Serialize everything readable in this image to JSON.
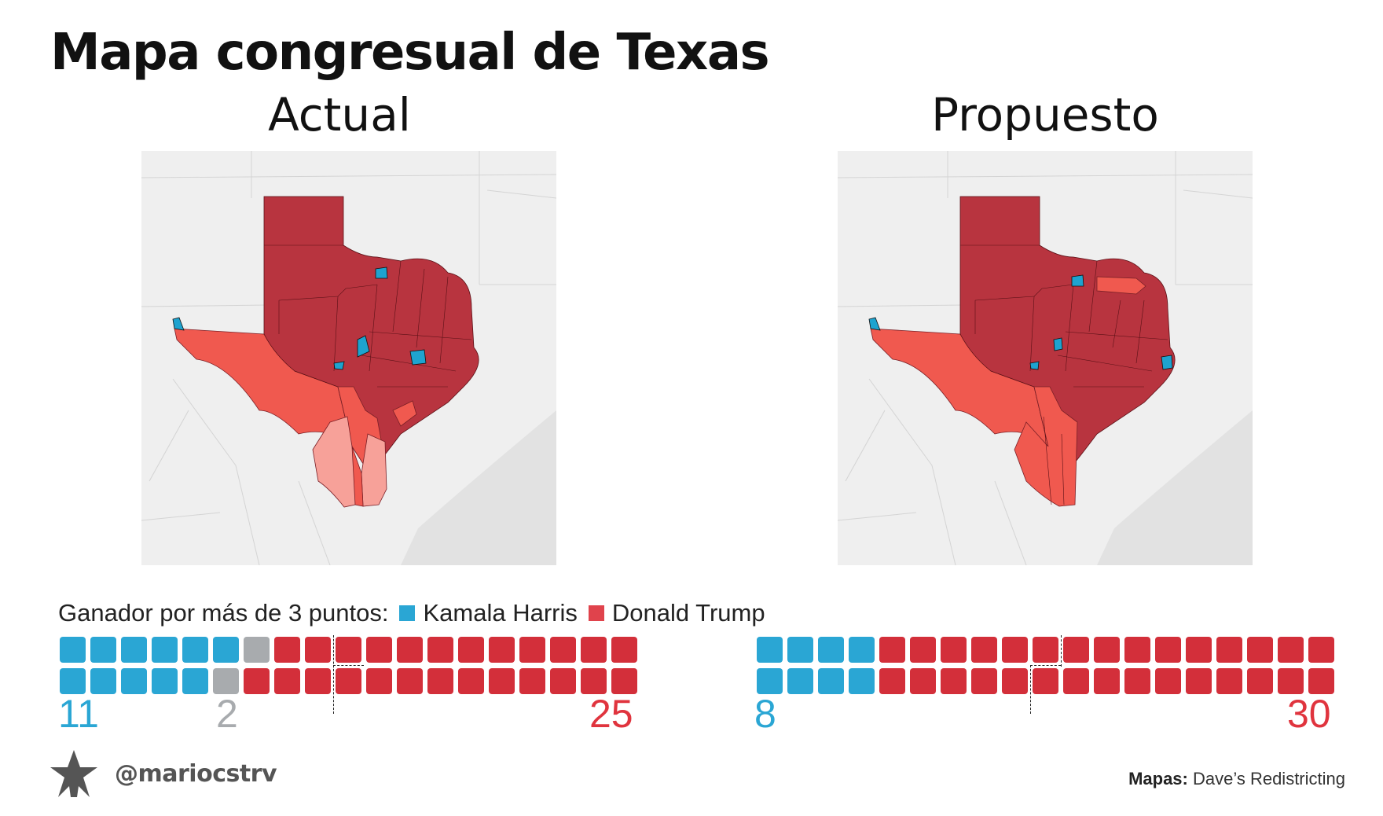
{
  "title": "Mapa congresual de Texas",
  "maps": [
    {
      "subtitle": "Actual"
    },
    {
      "subtitle": "Propuesto"
    }
  ],
  "legend": {
    "prefix": "Ganador por más de 3 puntos:",
    "harris": "Kamala Harris",
    "trump": "Donald Trump"
  },
  "colors": {
    "harris": "#2aa6d4",
    "trump": "#d32f3a",
    "tossup": "#a8abae",
    "map_safe_r": "#b8343f",
    "map_lean_r": "#f0594f",
    "map_tilt_r": "#f7a199",
    "map_dem": "#1ea3cf",
    "map_background": "#efefef",
    "map_gulf": "#e2e2e2"
  },
  "seats": {
    "actual": {
      "harris": 11,
      "tossup": 2,
      "trump": 25,
      "harris_label": "11",
      "tossup_label": "2",
      "trump_label": "25"
    },
    "proposed": {
      "harris": 8,
      "trump": 30,
      "harris_label": "8",
      "trump_label": "30"
    }
  },
  "brand": {
    "handle": "@mariocstrv",
    "logo_icon": "star-figure-icon"
  },
  "source": {
    "label": "Mapas:",
    "value": "Dave’s Redistricting"
  }
}
